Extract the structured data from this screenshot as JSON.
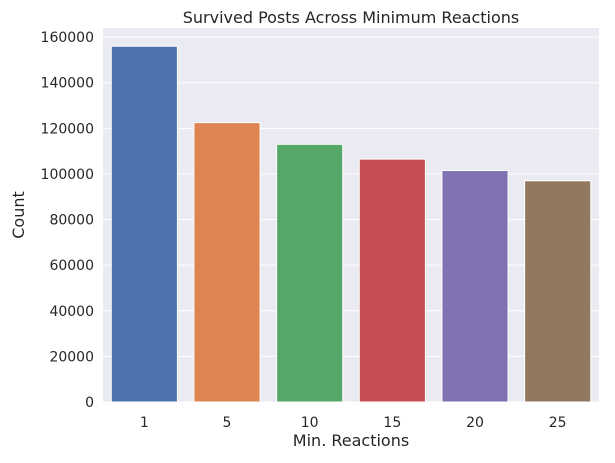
{
  "chart_data": {
    "type": "bar",
    "title": "Survived Posts Across Minimum Reactions",
    "xlabel": "Min. Reactions",
    "ylabel": "Count",
    "categories": [
      "1",
      "5",
      "10",
      "15",
      "20",
      "25"
    ],
    "values": [
      156000,
      122500,
      113000,
      106500,
      101500,
      97000
    ],
    "ylim": [
      0,
      164000
    ],
    "yticks": [
      0,
      20000,
      40000,
      60000,
      80000,
      100000,
      120000,
      140000,
      160000
    ],
    "ytick_labels": [
      "0",
      "20000",
      "40000",
      "60000",
      "80000",
      "100000",
      "120000",
      "140000",
      "160000"
    ],
    "colors": [
      "#4c72b0",
      "#dd8452",
      "#55a868",
      "#c44e52",
      "#8172b3",
      "#937860"
    ],
    "grid": true,
    "background": "#eaeaf2"
  }
}
